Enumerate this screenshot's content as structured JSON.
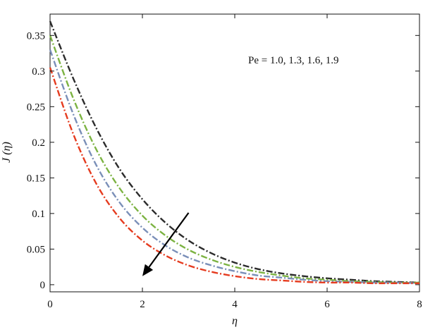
{
  "chart_data": {
    "type": "line",
    "title": "",
    "xlabel": "η",
    "ylabel": "J (η)",
    "xlim": [
      0,
      8
    ],
    "ylim": [
      -0.01,
      0.38
    ],
    "xticks": [
      "0",
      "2",
      "4",
      "6",
      "8"
    ],
    "yticks": [
      "0",
      "0.05",
      "0.1",
      "0.15",
      "0.2",
      "0.25",
      "0.3",
      "0.35"
    ],
    "grid": false,
    "x": [
      0,
      0.5,
      1,
      1.5,
      2,
      2.5,
      3,
      3.5,
      4,
      4.5,
      5,
      5.5,
      6,
      6.5,
      7,
      7.5,
      8
    ],
    "series": [
      {
        "color": "#2b2b2b",
        "line_style": "dash-dot",
        "values": [
          0.37,
          0.29,
          0.22,
          0.163,
          0.12,
          0.087,
          0.062,
          0.044,
          0.031,
          0.022,
          0.016,
          0.012,
          0.009,
          0.007,
          0.005,
          0.004,
          0.003
        ]
      },
      {
        "color": "#7cb342",
        "line_style": "dash-dot",
        "values": [
          0.35,
          0.262,
          0.19,
          0.136,
          0.097,
          0.069,
          0.049,
          0.035,
          0.025,
          0.018,
          0.013,
          0.009,
          0.007,
          0.005,
          0.004,
          0.003,
          0.003
        ]
      },
      {
        "color": "#7a8fb8",
        "line_style": "dash-dot",
        "values": [
          0.33,
          0.24,
          0.168,
          0.116,
          0.08,
          0.055,
          0.038,
          0.027,
          0.019,
          0.013,
          0.01,
          0.007,
          0.005,
          0.004,
          0.003,
          0.003,
          0.002
        ]
      },
      {
        "color": "#e53b1f",
        "line_style": "dash-dot",
        "values": [
          0.305,
          0.212,
          0.142,
          0.094,
          0.062,
          0.041,
          0.027,
          0.018,
          0.012,
          0.008,
          0.006,
          0.004,
          0.003,
          0.003,
          0.002,
          0.002,
          0.002
        ]
      }
    ],
    "annotations": [
      {
        "text": "Pe = 1.0, 1.3, 1.6, 1.9"
      }
    ],
    "arrow": {
      "from": [
        3.0,
        0.101
      ],
      "to": [
        2.0,
        0.012
      ],
      "color": "#000000"
    }
  }
}
